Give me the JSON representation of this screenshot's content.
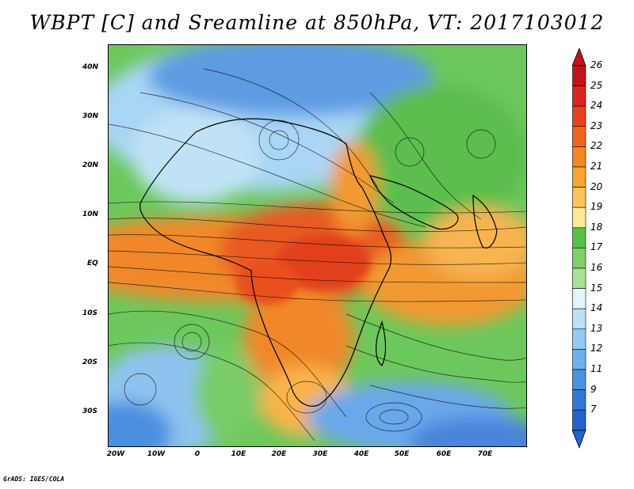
{
  "title": "WBPT [C] and Sreamline at 850hPa, VT: 2017103012",
  "credit": "GrADS: IGES/COLA",
  "lat_labels": [
    "40N",
    "30N",
    "20N",
    "10N",
    "EQ",
    "10S",
    "20S",
    "30S"
  ],
  "lon_labels": [
    "20W",
    "10W",
    "0",
    "10E",
    "20E",
    "30E",
    "40E",
    "50E",
    "60E",
    "70E"
  ],
  "colorbar": {
    "levels": [
      "26",
      "25",
      "24",
      "23",
      "22",
      "21",
      "20",
      "19",
      "18",
      "17",
      "16",
      "15",
      "14",
      "13",
      "12",
      "11",
      "9",
      "7"
    ],
    "colors": [
      "#c0141a",
      "#d8261c",
      "#e9411d",
      "#f0641f",
      "#f58624",
      "#f9a52e",
      "#fbc45a",
      "#fde89a",
      "#56c148",
      "#7fd06d",
      "#a8e197",
      "#e3f6f6",
      "#b9e2f6",
      "#92cbf2",
      "#6db0ec",
      "#4c93e0",
      "#3178d6",
      "#2562c9"
    ]
  },
  "map": {
    "fields": {
      "background": "#6cc85c",
      "warm_core": "#e64a1e",
      "warm": "#f2862a",
      "mild": "#f7b451",
      "cool_blue": "#9fd0f4",
      "cold_blue": "#4c8fe0"
    }
  }
}
